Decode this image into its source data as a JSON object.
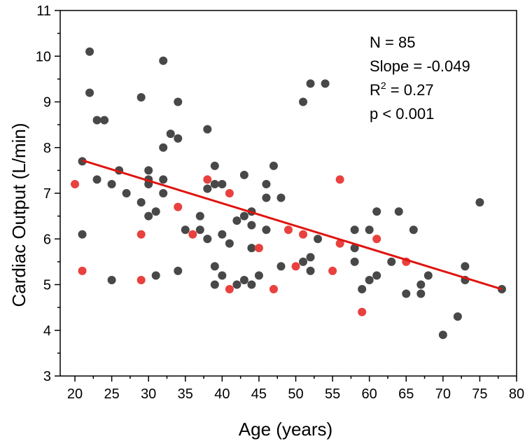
{
  "chart_data": {
    "type": "scatter",
    "title": "",
    "xlabel": "Age (years)",
    "ylabel": "Cardiac Output (L/min)",
    "xlim": [
      18,
      80
    ],
    "ylim": [
      3,
      11
    ],
    "xticks": [
      20,
      25,
      30,
      35,
      40,
      45,
      50,
      55,
      60,
      65,
      70,
      75,
      80
    ],
    "yticks": [
      3,
      4,
      5,
      6,
      7,
      8,
      9,
      10,
      11
    ],
    "grid": false,
    "legend": "none",
    "colors": {
      "dark": "#484848",
      "red": "#e8413e",
      "fit": "#e0140f"
    },
    "annotations": {
      "n": "N = 85",
      "slope": "Slope = -0.049",
      "r2_prefix": "R",
      "r2_sup": "2",
      "r2_suffix": " = 0.27",
      "p": "p < 0.001"
    },
    "fit_line": {
      "x": [
        21,
        78
      ],
      "y": [
        7.72,
        4.9
      ]
    },
    "series": [
      {
        "color": "dark",
        "points": [
          [
            21,
            7.7
          ],
          [
            21,
            6.1
          ],
          [
            22,
            10.1
          ],
          [
            22,
            9.2
          ],
          [
            23,
            8.6
          ],
          [
            23,
            7.3
          ],
          [
            24,
            8.6
          ],
          [
            25,
            5.1
          ],
          [
            25,
            7.2
          ],
          [
            26,
            7.5
          ],
          [
            27,
            7.0
          ],
          [
            29,
            9.1
          ],
          [
            29,
            6.8
          ],
          [
            30,
            7.5
          ],
          [
            30,
            7.3
          ],
          [
            30,
            7.2
          ],
          [
            30,
            6.5
          ],
          [
            31,
            6.6
          ],
          [
            31,
            5.2
          ],
          [
            32,
            9.9
          ],
          [
            32,
            8.0
          ],
          [
            32,
            7.3
          ],
          [
            32,
            7.0
          ],
          [
            33,
            8.3
          ],
          [
            34,
            8.2
          ],
          [
            34,
            9.0
          ],
          [
            34,
            5.3
          ],
          [
            35,
            6.2
          ],
          [
            37,
            6.5
          ],
          [
            37,
            6.2
          ],
          [
            38,
            8.4
          ],
          [
            38,
            7.1
          ],
          [
            38,
            6.0
          ],
          [
            39,
            7.6
          ],
          [
            39,
            7.2
          ],
          [
            39,
            5.4
          ],
          [
            39,
            5.0
          ],
          [
            40,
            7.2
          ],
          [
            40,
            6.1
          ],
          [
            40,
            5.2
          ],
          [
            41,
            5.9
          ],
          [
            42,
            6.4
          ],
          [
            42,
            5.0
          ],
          [
            43,
            7.4
          ],
          [
            43,
            6.5
          ],
          [
            43,
            5.1
          ],
          [
            44,
            6.6
          ],
          [
            44,
            6.3
          ],
          [
            44,
            5.8
          ],
          [
            44,
            5.0
          ],
          [
            45,
            5.2
          ],
          [
            46,
            7.2
          ],
          [
            46,
            6.9
          ],
          [
            46,
            6.2
          ],
          [
            47,
            7.6
          ],
          [
            48,
            6.9
          ],
          [
            48,
            5.4
          ],
          [
            51,
            9.0
          ],
          [
            51,
            5.5
          ],
          [
            52,
            9.4
          ],
          [
            52,
            5.6
          ],
          [
            52,
            5.3
          ],
          [
            53,
            6.0
          ],
          [
            54,
            9.4
          ],
          [
            58,
            6.2
          ],
          [
            58,
            5.8
          ],
          [
            58,
            5.5
          ],
          [
            59,
            4.9
          ],
          [
            60,
            6.2
          ],
          [
            60,
            5.1
          ],
          [
            61,
            6.6
          ],
          [
            61,
            5.2
          ],
          [
            63,
            5.5
          ],
          [
            64,
            6.6
          ],
          [
            65,
            4.8
          ],
          [
            66,
            6.2
          ],
          [
            67,
            5.0
          ],
          [
            67,
            4.8
          ],
          [
            68,
            5.2
          ],
          [
            70,
            3.9
          ],
          [
            72,
            4.3
          ],
          [
            73,
            5.4
          ],
          [
            73,
            5.1
          ],
          [
            75,
            6.8
          ],
          [
            78,
            4.9
          ]
        ]
      },
      {
        "color": "red",
        "points": [
          [
            20,
            7.2
          ],
          [
            21,
            5.3
          ],
          [
            29,
            6.1
          ],
          [
            29,
            5.1
          ],
          [
            34,
            6.7
          ],
          [
            36,
            6.1
          ],
          [
            38,
            7.3
          ],
          [
            41,
            7.0
          ],
          [
            41,
            4.9
          ],
          [
            45,
            5.8
          ],
          [
            47,
            4.9
          ],
          [
            49,
            6.2
          ],
          [
            50,
            5.4
          ],
          [
            51,
            6.1
          ],
          [
            55,
            5.3
          ],
          [
            56,
            7.3
          ],
          [
            56,
            5.9
          ],
          [
            59,
            4.4
          ],
          [
            61,
            6.0
          ],
          [
            65,
            5.5
          ]
        ]
      }
    ]
  }
}
